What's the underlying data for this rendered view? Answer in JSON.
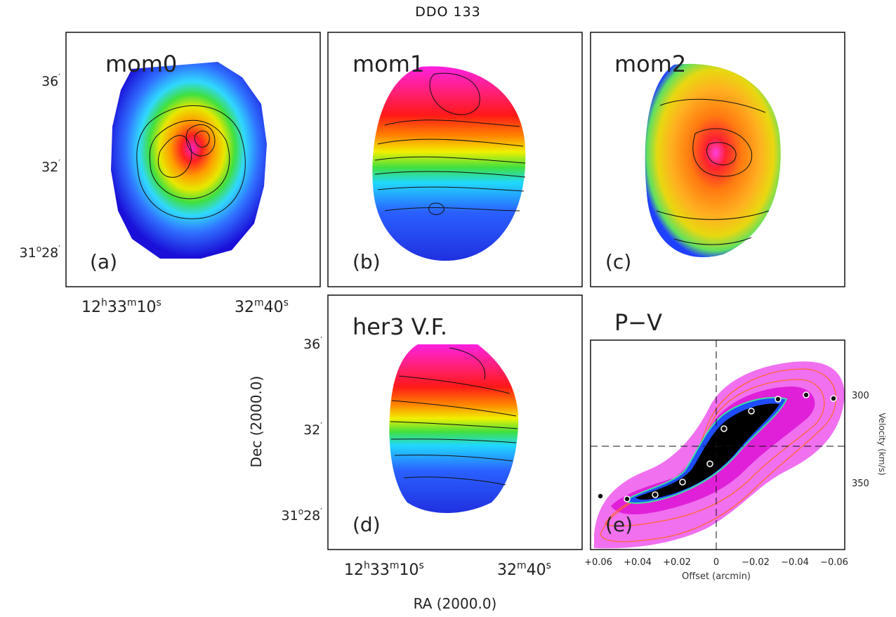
{
  "figure": {
    "title": "DDO 133",
    "x_axis_label": "RA (2000.0)",
    "y_axis_label": "Dec (2000.0)"
  },
  "sky_axes": {
    "dec_ticks": [
      {
        "deg": "",
        "min": "36",
        "label": "36′"
      },
      {
        "deg": "",
        "min": "32",
        "label": "32′"
      },
      {
        "deg": "31",
        "min": "28",
        "label": "31°28′"
      }
    ],
    "ra_ticks": [
      {
        "label": "12h33m10s"
      },
      {
        "label": "32m40s"
      }
    ]
  },
  "panels": [
    {
      "id": "a",
      "label": "mom0",
      "letter": "(a)"
    },
    {
      "id": "b",
      "label": "mom1",
      "letter": "(b)"
    },
    {
      "id": "c",
      "label": "mom2",
      "letter": "(c)"
    },
    {
      "id": "d",
      "label": "her3 V.F.",
      "letter": "(d)"
    },
    {
      "id": "e",
      "label": "P−V",
      "letter": "(e)"
    }
  ],
  "pv": {
    "xlabel": "Offset (arcmin)",
    "ylabel": "Velocity (km/s)",
    "x_ticks": [
      "+0.06",
      "+0.04",
      "+0.02",
      "0",
      "−0.02",
      "−0.04",
      "−0.06"
    ],
    "y_ticks": [
      "300",
      "350"
    ],
    "colors": {
      "outer": "#f06cf0",
      "mid": "#e020d8",
      "contour": "#ff6633",
      "core": "#000000"
    }
  }
}
